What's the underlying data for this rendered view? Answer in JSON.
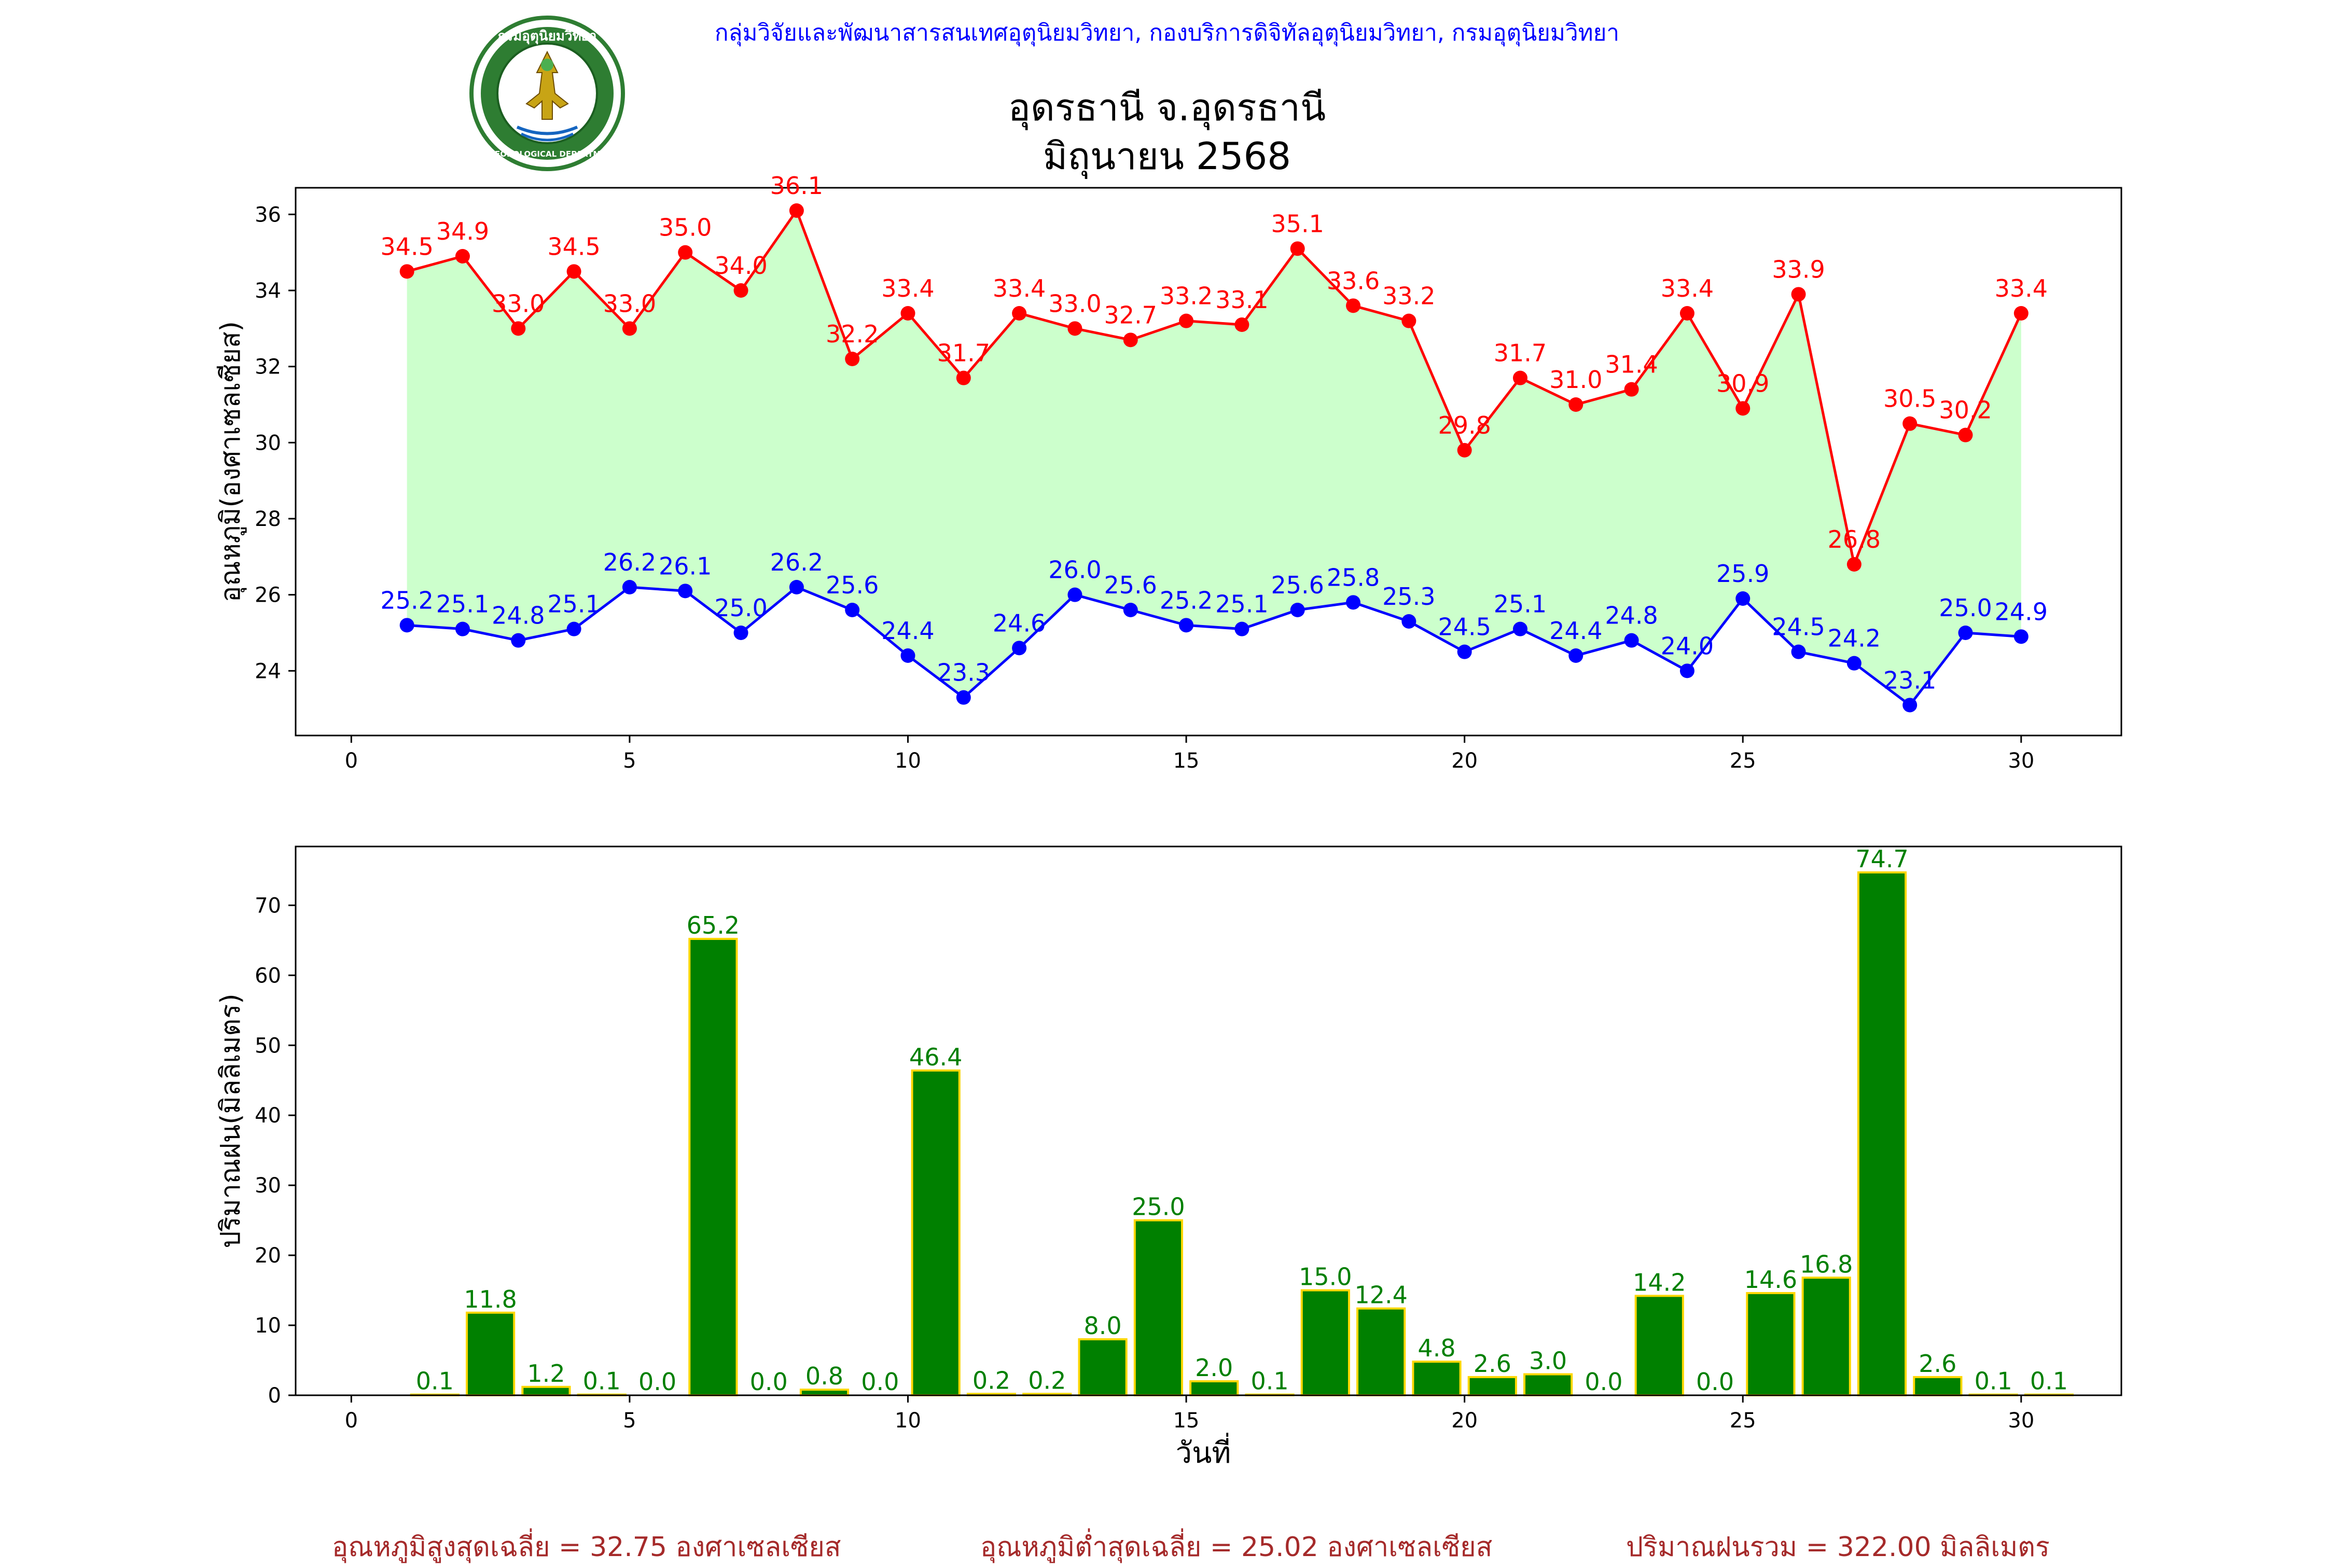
{
  "header": {
    "organization": "กลุ่มวิจัยและพัฒนาสารสนเทศอุตุนิยมวิทยา, กองบริการดิจิทัลอุตุนิยมวิทยา, กรมอุตุนิยมวิทยา",
    "logo_top_text": "กรมอุตุนิยมวิทยา",
    "logo_bottom_text": "METEOROLOGICAL DEPARTMENT"
  },
  "chart_title": {
    "line1": "อุดรธานี จ.อุดรธานี",
    "line2": "มิถุนายน 2568"
  },
  "colors": {
    "max_temp": "#ff0000",
    "min_temp": "#0000ff",
    "fill": "#ccffcc",
    "rain_bar": "#008000",
    "rain_edge": "#ffd700",
    "footer": "#a52a2a"
  },
  "chart_data": [
    {
      "type": "line",
      "ylabel": "อุณหภูมิ(องศาเซลเซียส)",
      "xlim": [
        -1,
        31.8
      ],
      "ylim": [
        22.3,
        36.7
      ],
      "xticks": [
        0,
        5,
        10,
        15,
        20,
        25,
        30
      ],
      "yticks": [
        24,
        26,
        28,
        30,
        32,
        34,
        36
      ],
      "x": [
        1,
        2,
        3,
        4,
        5,
        6,
        7,
        8,
        9,
        10,
        11,
        12,
        13,
        14,
        15,
        16,
        17,
        18,
        19,
        20,
        21,
        22,
        23,
        24,
        25,
        26,
        27,
        28,
        29,
        30
      ],
      "series": [
        {
          "key": "max",
          "values": [
            34.5,
            34.9,
            33.0,
            34.5,
            33.0,
            35.0,
            34.0,
            36.1,
            32.2,
            33.4,
            31.7,
            33.4,
            33.0,
            32.7,
            33.2,
            33.1,
            35.1,
            33.6,
            33.2,
            29.8,
            31.7,
            31.0,
            31.4,
            33.4,
            30.9,
            33.9,
            26.8,
            30.5,
            30.2,
            33.4
          ]
        },
        {
          "key": "min",
          "values": [
            25.2,
            25.1,
            24.8,
            25.1,
            26.2,
            26.1,
            25.0,
            26.2,
            25.6,
            24.4,
            23.3,
            24.6,
            26.0,
            25.6,
            25.2,
            25.1,
            25.6,
            25.8,
            25.3,
            24.5,
            25.1,
            24.4,
            24.8,
            24.0,
            25.9,
            24.5,
            24.2,
            23.1,
            25.0,
            24.9
          ]
        }
      ]
    },
    {
      "type": "bar",
      "xlabel": "วันที่",
      "ylabel": "ปริมาณฝน(มิลลิเมตร)",
      "xlim": [
        -1,
        31.8
      ],
      "ylim": [
        0,
        78.4
      ],
      "xticks": [
        0,
        5,
        10,
        15,
        20,
        25,
        30
      ],
      "yticks": [
        0,
        10,
        20,
        30,
        40,
        50,
        60,
        70
      ],
      "x": [
        1,
        2,
        3,
        4,
        5,
        6,
        7,
        8,
        9,
        10,
        11,
        12,
        13,
        14,
        15,
        16,
        17,
        18,
        19,
        20,
        21,
        22,
        23,
        24,
        25,
        26,
        27,
        28,
        29,
        30
      ],
      "values": [
        0.1,
        11.8,
        1.2,
        0.1,
        0.0,
        65.2,
        0.0,
        0.8,
        0.0,
        46.4,
        0.2,
        0.2,
        8.0,
        25.0,
        2.0,
        0.1,
        15.0,
        12.4,
        4.8,
        2.6,
        3.0,
        0.0,
        14.2,
        0.0,
        14.6,
        16.8,
        74.7,
        2.6,
        0.1,
        0.1
      ]
    }
  ],
  "footer": {
    "avg_max": "อุณหภูมิสูงสุดเฉลี่ย = 32.75 องศาเซลเซียส",
    "avg_min": "อุณหภูมิต่ำสุดเฉลี่ย = 25.02 องศาเซลเซียส",
    "total_rain": "ปริมาณฝนรวม = 322.00 มิลลิเมตร"
  }
}
